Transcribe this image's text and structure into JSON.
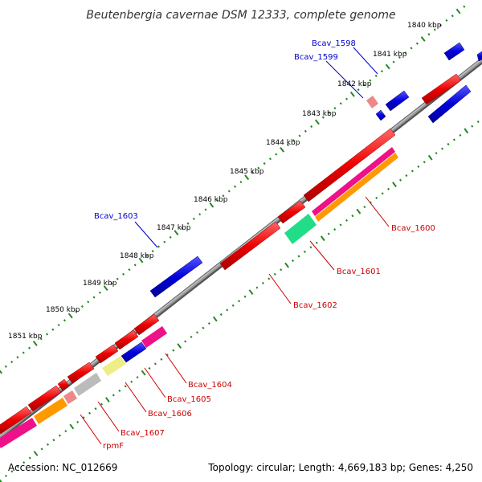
{
  "title": "Beutenbergia cavernae DSM 12333, complete genome",
  "footer": {
    "accession": "Accession: NC_012669",
    "summary": "Topology: circular; Length: 4,669,183 bp; Genes: 4,250"
  },
  "scale_labels": [
    "1840 kbp",
    "1841 kbp",
    "1842 kbp",
    "1843 kbp",
    "1844 kbp",
    "1845 kbp",
    "1846 kbp",
    "1847 kbp",
    "1848 kbp",
    "1849 kbp",
    "1850 kbp",
    "1851 kbp"
  ],
  "gene_labels": [
    {
      "id": "Bcav_1598",
      "color": "#0000cc"
    },
    {
      "id": "Bcav_1599",
      "color": "#0000cc"
    },
    {
      "id": "Bcav_1603",
      "color": "#0000cc"
    },
    {
      "id": "Bcav_1600",
      "color": "#cc0000"
    },
    {
      "id": "Bcav_1601",
      "color": "#cc0000"
    },
    {
      "id": "Bcav_1602",
      "color": "#cc0000"
    },
    {
      "id": "Bcav_1604",
      "color": "#cc0000"
    },
    {
      "id": "Bcav_1605",
      "color": "#cc0000"
    },
    {
      "id": "Bcav_1606",
      "color": "#cc0000"
    },
    {
      "id": "Bcav_1607",
      "color": "#cc0000"
    },
    {
      "id": "rpmF",
      "color": "#cc0000"
    }
  ],
  "colors": {
    "forward_gene": "#ee0000",
    "reverse_gene": "#0000dd",
    "backbone": "#888888",
    "tick": "#228822",
    "magenta_track": "#ee1188",
    "orange_track": "#ff9900",
    "green_track": "#22dd88",
    "yellow_track": "#eeee88",
    "grey_track": "#bbbbbb",
    "pink_track": "#ee8888"
  }
}
